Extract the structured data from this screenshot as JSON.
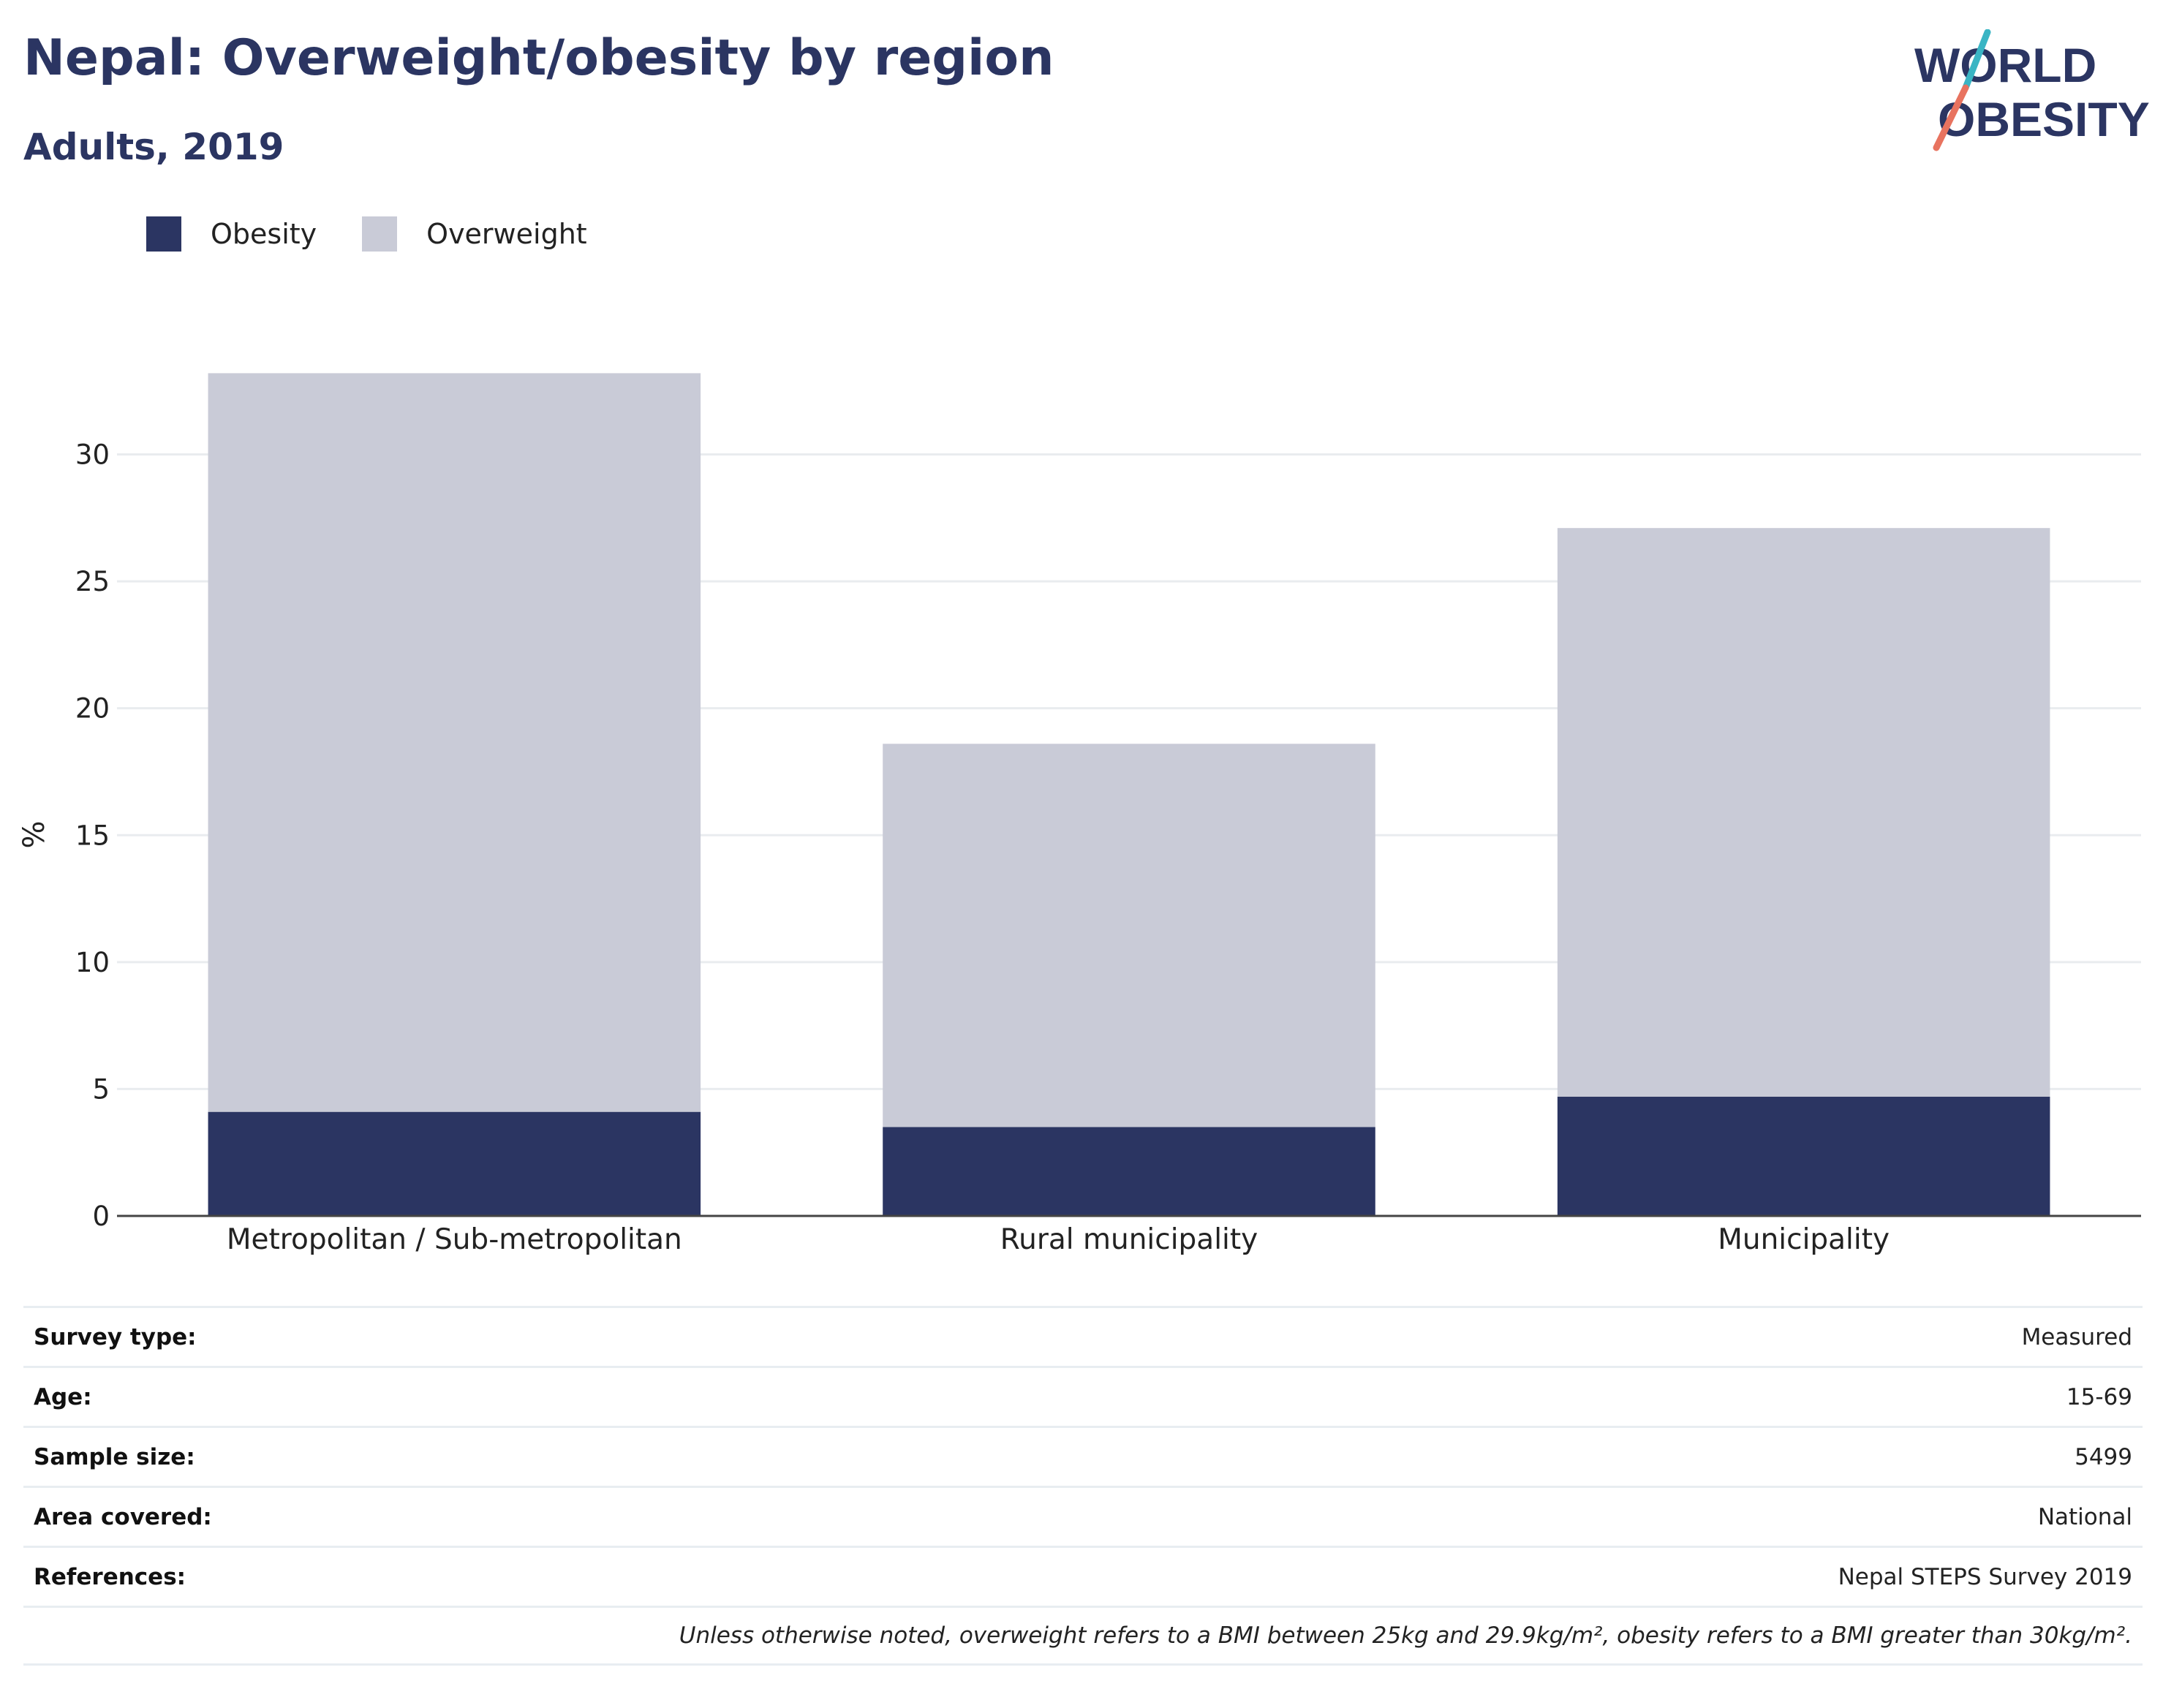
{
  "header": {
    "title": "Nepal: Overweight/obesity by region",
    "subtitle": "Adults, 2019"
  },
  "logo": {
    "line1": "WORLD",
    "line2": "OBESITY",
    "accent_teal": "#3ab5c4",
    "accent_coral": "#e8735f",
    "text_color": "#2b3562"
  },
  "legend": [
    {
      "label": "Obesity",
      "color": "#2b3562"
    },
    {
      "label": "Overweight",
      "color": "#c9cbd7"
    }
  ],
  "chart_data": {
    "type": "bar",
    "stacked": true,
    "categories": [
      "Metropolitan / Sub-metropolitan",
      "Rural municipality",
      "Municipality"
    ],
    "series": [
      {
        "name": "Obesity",
        "values": [
          4.1,
          3.5,
          4.7
        ],
        "color": "#2b3562"
      },
      {
        "name": "Overweight",
        "values": [
          29.1,
          15.1,
          22.4
        ],
        "color": "#c9cbd7"
      }
    ],
    "ylabel": "%",
    "ylim": [
      0,
      33.5
    ],
    "yticks": [
      0,
      5,
      10,
      15,
      20,
      25,
      30
    ],
    "grid": true,
    "legend_position": "top-left"
  },
  "info_table": [
    {
      "label": "Survey type:",
      "value": "Measured"
    },
    {
      "label": "Age:",
      "value": "15-69"
    },
    {
      "label": "Sample size:",
      "value": "5499"
    },
    {
      "label": "Area covered:",
      "value": "National"
    },
    {
      "label": "References:",
      "value": "Nepal STEPS Survey 2019"
    }
  ],
  "footnote": "Unless otherwise noted, overweight refers to a BMI between 25kg and 29.9kg/m², obesity refers to a BMI greater than 30kg/m²."
}
